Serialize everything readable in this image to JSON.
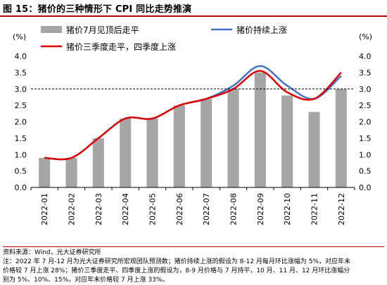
{
  "header": {
    "title": "图 15：猪价的三种情形下 CPI 同比走势推演"
  },
  "chart_data": {
    "type": "bar",
    "categories": [
      "2022-01",
      "2022-02",
      "2022-03",
      "2022-04",
      "2022-05",
      "2022-06",
      "2022-07",
      "2022-08",
      "2022-09",
      "2022-10",
      "2022-11",
      "2022-12"
    ],
    "ylim": [
      0,
      4.0
    ],
    "yticks": [
      "0.0",
      "0.5",
      "1.0",
      "1.5",
      "2.0",
      "2.5",
      "3.0",
      "3.5",
      "4.0"
    ],
    "y_unit_left": "(%)",
    "y_unit_right": "(%)",
    "reference_line": 3.0,
    "grid": false,
    "legend_placement": "top",
    "series": [
      {
        "name": "猪价7月见顶后走平",
        "kind": "bar",
        "color": "#a6a6a6",
        "values": [
          0.9,
          0.9,
          1.5,
          2.1,
          2.1,
          2.5,
          2.7,
          3.0,
          3.5,
          2.8,
          2.3,
          3.0
        ]
      },
      {
        "name": "猪价持续上涨",
        "kind": "line",
        "color": "#4472c4",
        "values": [
          0.9,
          0.9,
          1.5,
          2.1,
          2.1,
          2.5,
          2.7,
          3.1,
          3.7,
          3.1,
          2.7,
          3.4
        ]
      },
      {
        "name": "猪价三季度走平，四季度上涨",
        "kind": "line",
        "color": "#e00000",
        "values": [
          0.9,
          0.9,
          1.5,
          2.1,
          2.1,
          2.5,
          2.7,
          3.0,
          3.55,
          2.9,
          2.7,
          3.5
        ]
      }
    ]
  },
  "footer": {
    "source": "资料来源：Wind，光大证券研究所",
    "note_lines": [
      "注：2022 年 7 月-12 月为光大证券研究所宏观团队预测数；猪价持续上涨的假设为 8-12 月每月环比涨幅为 5%，对应年末",
      "价格较 7 月上涨 28%；猪价三季度走平、四季度上涨的假设为，8-9 月价格与 7 月持平，10 月、11 月、12 月环比涨幅分",
      "别为 5%、10%、15%，对应年末价格较 7 月上涨 33%。"
    ]
  }
}
